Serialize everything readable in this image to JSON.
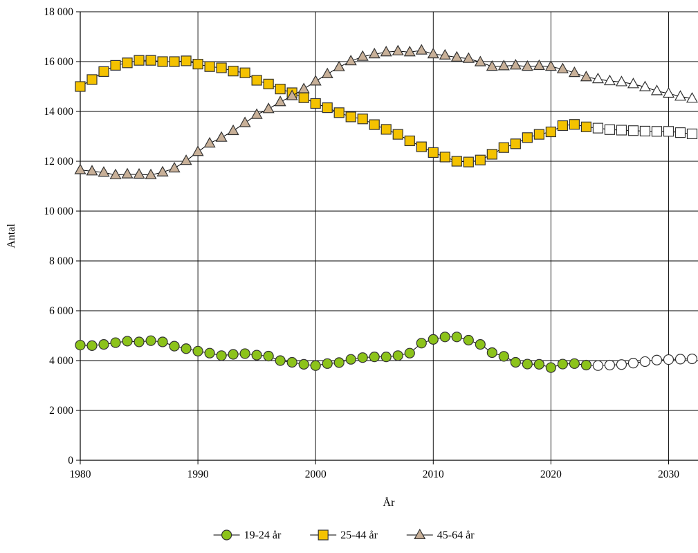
{
  "chart_data": {
    "type": "line",
    "title": "",
    "xlabel": "År",
    "ylabel": "Antal",
    "xlim": [
      1980,
      2032.5
    ],
    "ylim": [
      0,
      18000
    ],
    "x_ticks": [
      1980,
      1990,
      2000,
      2010,
      2020,
      2030
    ],
    "x_tick_labels": [
      "1980",
      "1990",
      "2000",
      "2010",
      "2020",
      "2030"
    ],
    "y_ticks": [
      0,
      2000,
      4000,
      6000,
      8000,
      10000,
      12000,
      14000,
      16000,
      18000
    ],
    "y_tick_labels": [
      "0",
      "2 000",
      "4 000",
      "6 000",
      "8 000",
      "10 000",
      "12 000",
      "14 000",
      "16 000",
      "18 000"
    ],
    "grid": true,
    "legend_position": "bottom",
    "forecast_start": 2024,
    "x": [
      1980,
      1981,
      1982,
      1983,
      1984,
      1985,
      1986,
      1987,
      1988,
      1989,
      1990,
      1991,
      1992,
      1993,
      1994,
      1995,
      1996,
      1997,
      1998,
      1999,
      2000,
      2001,
      2002,
      2003,
      2004,
      2005,
      2006,
      2007,
      2008,
      2009,
      2010,
      2011,
      2012,
      2013,
      2014,
      2015,
      2016,
      2017,
      2018,
      2019,
      2020,
      2021,
      2022,
      2023,
      2024,
      2025,
      2026,
      2027,
      2028,
      2029,
      2030,
      2031,
      2032
    ],
    "series": [
      {
        "name": "19-24 år",
        "marker": "circle",
        "color": "#8cc31a",
        "values": [
          4620,
          4600,
          4650,
          4720,
          4780,
          4750,
          4800,
          4750,
          4580,
          4480,
          4380,
          4300,
          4200,
          4250,
          4280,
          4220,
          4180,
          4000,
          3930,
          3850,
          3800,
          3880,
          3920,
          4050,
          4120,
          4150,
          4150,
          4200,
          4300,
          4700,
          4850,
          4950,
          4950,
          4820,
          4650,
          4320,
          4170,
          3930,
          3860,
          3850,
          3720,
          3860,
          3880,
          3820,
          3800,
          3820,
          3840,
          3900,
          3960,
          4020,
          4040,
          4060,
          4070
        ]
      },
      {
        "name": "25-44 år",
        "marker": "square",
        "color": "#f4c200",
        "values": [
          15000,
          15280,
          15600,
          15850,
          15950,
          16050,
          16050,
          16000,
          16000,
          16030,
          15900,
          15800,
          15750,
          15620,
          15550,
          15250,
          15100,
          14900,
          14750,
          14550,
          14320,
          14150,
          13950,
          13780,
          13700,
          13470,
          13280,
          13080,
          12820,
          12580,
          12350,
          12170,
          12000,
          11970,
          12050,
          12280,
          12550,
          12700,
          12950,
          13080,
          13180,
          13430,
          13480,
          13380,
          13330,
          13270,
          13250,
          13230,
          13210,
          13200,
          13200,
          13150,
          13100
        ]
      },
      {
        "name": "45-64 år",
        "marker": "triangle",
        "color": "#c8b098",
        "values": [
          11650,
          11600,
          11550,
          11450,
          11480,
          11470,
          11450,
          11560,
          11720,
          12020,
          12380,
          12720,
          12950,
          13220,
          13540,
          13870,
          14100,
          14380,
          14620,
          14900,
          15210,
          15500,
          15780,
          16020,
          16200,
          16300,
          16380,
          16420,
          16380,
          16450,
          16300,
          16250,
          16170,
          16120,
          15980,
          15800,
          15820,
          15850,
          15800,
          15830,
          15800,
          15700,
          15550,
          15380,
          15300,
          15220,
          15180,
          15100,
          14980,
          14820,
          14720,
          14600,
          14520
        ]
      }
    ]
  }
}
